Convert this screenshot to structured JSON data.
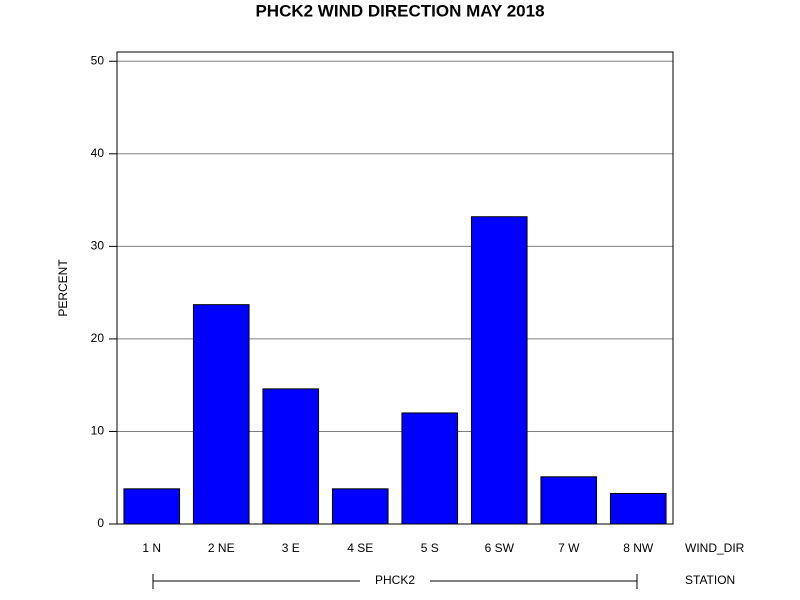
{
  "chart_data": {
    "type": "bar",
    "title": "PHCK2 WIND DIRECTION MAY 2018",
    "y_label": "PERCENT",
    "x_label": "WIND_DIR",
    "group_label": "STATION",
    "group": "PHCK2",
    "categories": [
      "1 N",
      "2 NE",
      "3 E",
      "4 SE",
      "5 S",
      "6 SW",
      "7 W",
      "8 NW"
    ],
    "values": [
      3.8,
      23.7,
      14.6,
      3.8,
      12.0,
      33.2,
      5.1,
      3.3
    ],
    "color": "#0000ff",
    "ylim": [
      0,
      51
    ],
    "yticks": [
      0,
      10,
      20,
      30,
      40,
      50
    ],
    "grid": true
  }
}
